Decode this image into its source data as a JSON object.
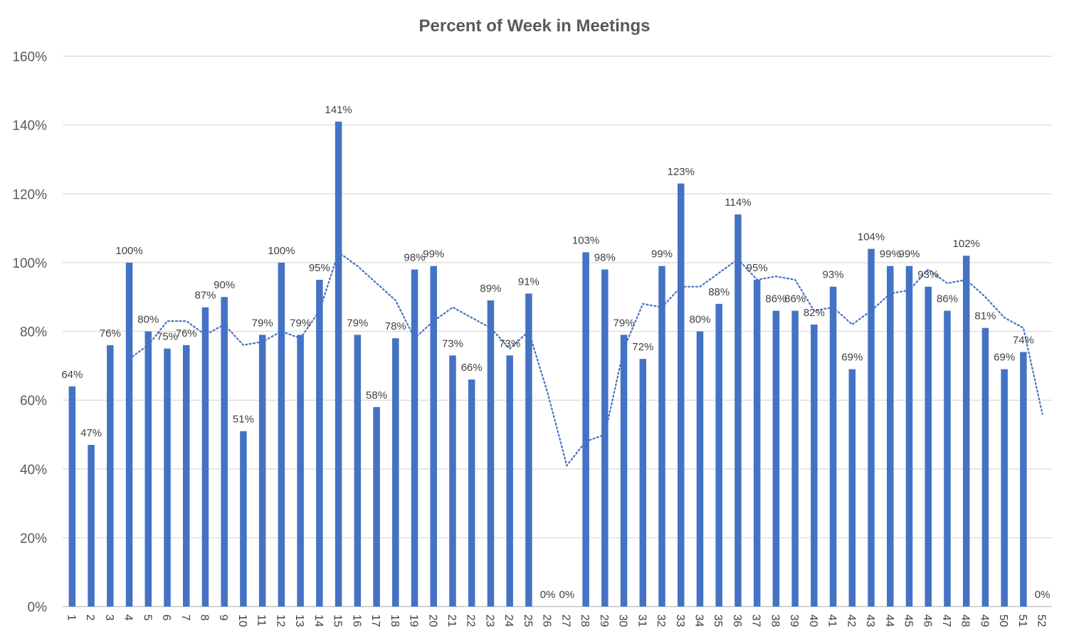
{
  "chart_data": {
    "type": "bar",
    "title": "Percent of Week in Meetings",
    "xlabel": "",
    "ylabel": "",
    "ylim": [
      0,
      160
    ],
    "yticks": [
      0,
      20,
      40,
      60,
      80,
      100,
      120,
      140,
      160
    ],
    "ytick_labels": [
      "0%",
      "20%",
      "40%",
      "60%",
      "80%",
      "100%",
      "120%",
      "140%",
      "160%"
    ],
    "grid": true,
    "legend": "none",
    "bar_color": "#4472C4",
    "trendline_color": "#4472C4",
    "categories": [
      "1",
      "2",
      "3",
      "4",
      "5",
      "6",
      "7",
      "8",
      "9",
      "10",
      "11",
      "12",
      "13",
      "14",
      "15",
      "16",
      "17",
      "18",
      "19",
      "20",
      "21",
      "22",
      "23",
      "24",
      "25",
      "26",
      "27",
      "28",
      "29",
      "30",
      "31",
      "32",
      "33",
      "34",
      "35",
      "36",
      "37",
      "38",
      "39",
      "40",
      "41",
      "42",
      "43",
      "44",
      "45",
      "46",
      "47",
      "48",
      "49",
      "50",
      "51",
      "52"
    ],
    "series": [
      {
        "values": [
          64,
          47,
          76,
          100,
          80,
          75,
          76,
          87,
          90,
          51,
          79,
          100,
          79,
          95,
          141,
          79,
          58,
          78,
          98,
          99,
          73,
          66,
          89,
          73,
          91,
          0,
          0,
          103,
          98,
          79,
          72,
          99,
          123,
          80,
          88,
          114,
          95,
          86,
          86,
          82,
          93,
          69,
          104,
          99,
          99,
          93,
          86,
          102,
          81,
          69,
          74,
          0
        ],
        "labels": [
          "64%",
          "47%",
          "76%",
          "100%",
          "80%",
          "75%",
          "76%",
          "87%",
          "90%",
          "51%",
          "79%",
          "100%",
          "79%",
          "95%",
          "141%",
          "79%",
          "58%",
          "78%",
          "98%",
          "99%",
          "73%",
          "66%",
          "89%",
          "73%",
          "91%",
          "0%",
          "0%",
          "103%",
          "98%",
          "79%",
          "72%",
          "99%",
          "123%",
          "80%",
          "88%",
          "114%",
          "95%",
          "86%",
          "86%",
          "82%",
          "93%",
          "69%",
          "104%",
          "99%",
          "99%",
          "93%",
          "86%",
          "102%",
          "81%",
          "69%",
          "74%",
          "0%"
        ]
      }
    ],
    "trendline": {
      "type": "moving_average",
      "style": "dotted",
      "x_start": 4,
      "values": [
        72,
        76,
        83,
        83,
        79,
        82,
        76,
        77,
        80,
        78,
        86,
        103,
        99,
        94,
        89,
        78,
        83,
        87,
        84,
        81,
        75,
        80,
        62,
        41,
        48,
        50,
        75,
        88,
        87,
        93,
        93,
        97,
        101,
        95,
        96,
        95,
        86,
        87,
        82,
        86,
        91,
        92,
        98,
        94,
        95,
        90,
        84,
        81,
        56
      ]
    }
  }
}
